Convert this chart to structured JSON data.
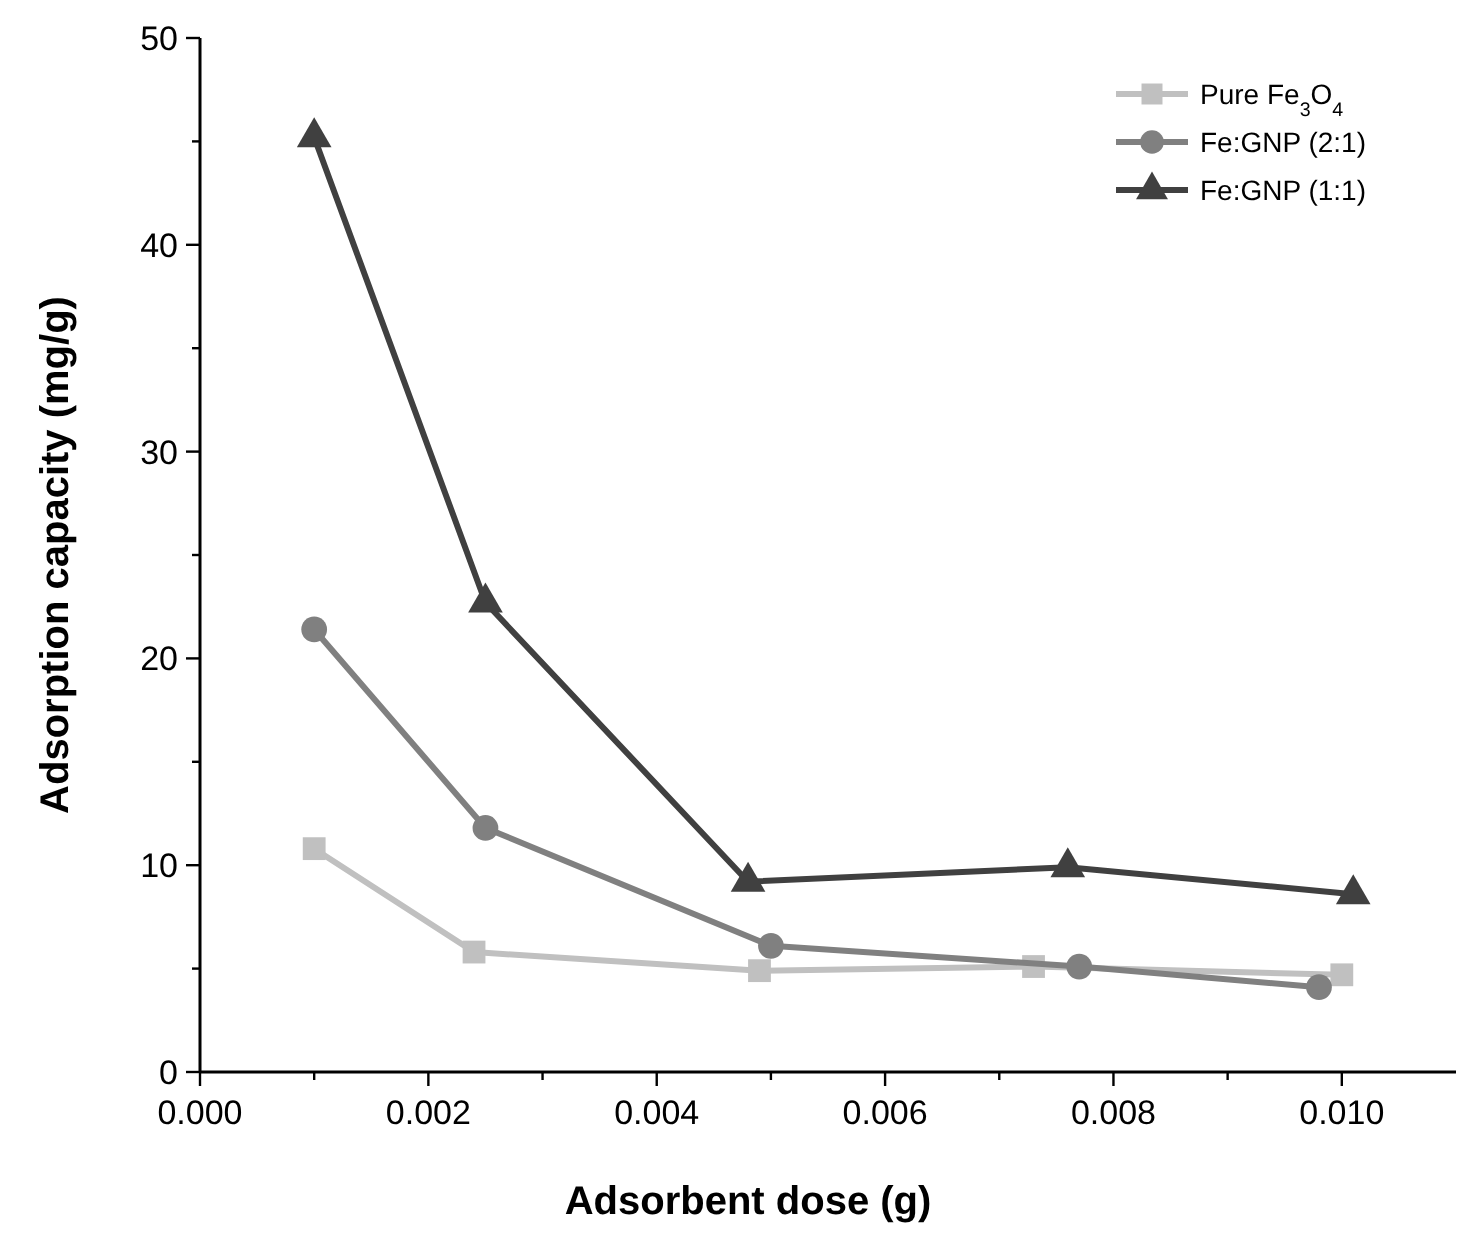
{
  "chart_data": {
    "type": "line",
    "xlabel": "Adsorbent dose (g)",
    "ylabel": "Adsorption capacity (mg/g)",
    "xlim": [
      0,
      0.011
    ],
    "xticks": [
      {
        "value": 0,
        "label": "0.000"
      },
      {
        "value": 0.001,
        "label": null
      },
      {
        "value": 0.002,
        "label": "0.002"
      },
      {
        "value": 0.003,
        "label": null
      },
      {
        "value": 0.004,
        "label": "0.004"
      },
      {
        "value": 0.005,
        "label": null
      },
      {
        "value": 0.006,
        "label": "0.006"
      },
      {
        "value": 0.007,
        "label": null
      },
      {
        "value": 0.008,
        "label": "0.008"
      },
      {
        "value": 0.009,
        "label": null
      },
      {
        "value": 0.01,
        "label": "0.010"
      }
    ],
    "ylim": [
      0,
      50
    ],
    "yticks": [
      0,
      {
        "value": 5,
        "label": null
      },
      10,
      {
        "value": 15,
        "label": null
      },
      20,
      {
        "value": 25,
        "label": null
      },
      30,
      {
        "value": 35,
        "label": null
      },
      40,
      {
        "value": 45,
        "label": null
      },
      50
    ],
    "grid": false,
    "legend": "top right",
    "series": [
      {
        "name": "Pure Fe$_{3}$O$_{4}$",
        "color": "#c0c0c0",
        "marker": "square",
        "x": [
          0.001,
          0.0024,
          0.0049,
          0.0073,
          0.01
        ],
        "values": [
          10.8,
          5.8,
          4.9,
          5.1,
          4.7
        ]
      },
      {
        "name": "Fe:GNP (2:1)",
        "color": "#808080",
        "marker": "circle",
        "x": [
          0.001,
          0.0025,
          0.005,
          0.0077,
          0.0098
        ],
        "values": [
          21.4,
          11.8,
          6.1,
          5.1,
          4.1
        ]
      },
      {
        "name": "Fe:GNP (1:1)",
        "color": "#404040",
        "marker": "triangle",
        "x": [
          0.001,
          0.0025,
          0.0048,
          0.0076,
          0.0101
        ],
        "values": [
          45.2,
          22.7,
          9.2,
          9.9,
          8.6
        ]
      }
    ]
  }
}
